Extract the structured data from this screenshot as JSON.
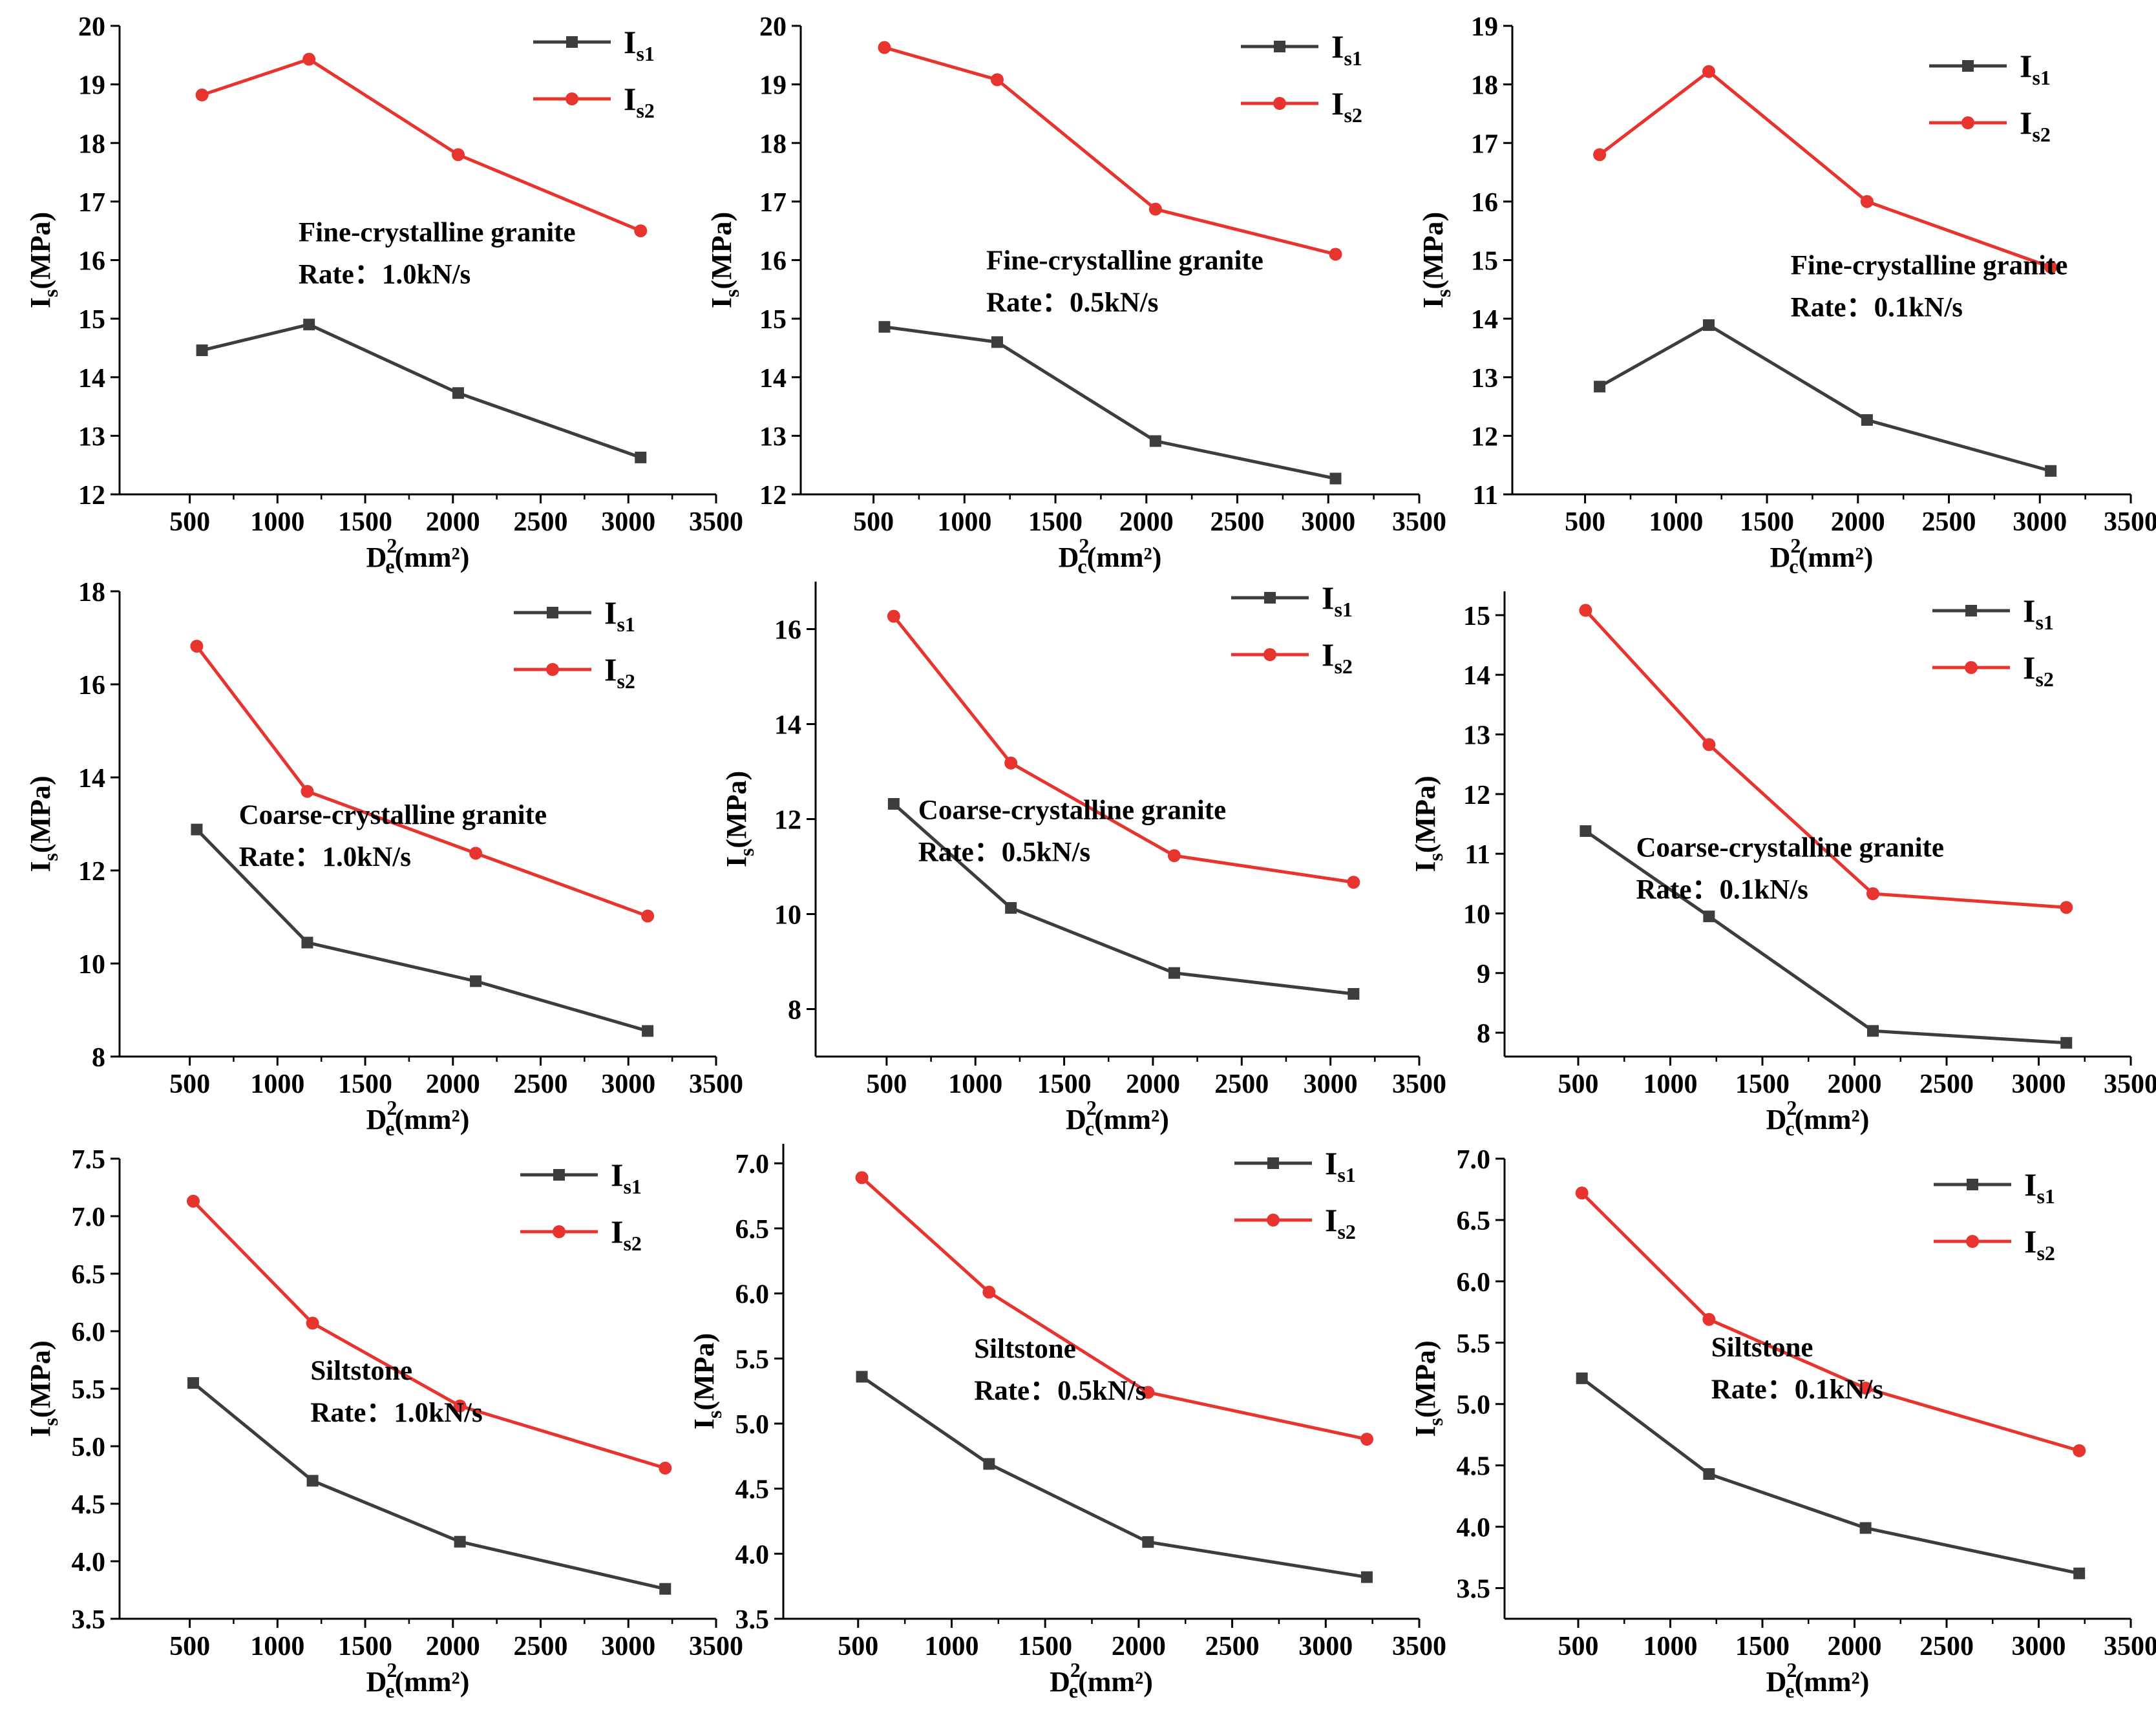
{
  "colors": {
    "s1": "#3d3d3d",
    "s2": "#e8342f",
    "axis": "#000000"
  },
  "axis_text": {
    "ylabel_main": "I",
    "ylabel_sub": "s",
    "ylabel_unit": "(MPa)",
    "xlabel_main": "D",
    "xlabel_sup": "2",
    "xlabel_unit": "(mm²)"
  },
  "legend_text": {
    "main": "I",
    "s1_sub": "s1",
    "s2_sub": "s2"
  },
  "chart_data": [
    {
      "type": "line",
      "title": "",
      "annotation": [
        "Fine-crystalline granite",
        "Rate：1.0kN/s"
      ],
      "xlabel_sub": "e",
      "xlim": [
        100,
        3500
      ],
      "xticks": [
        500,
        1000,
        1500,
        2000,
        2500,
        3000,
        3500
      ],
      "ylim": [
        12,
        20
      ],
      "yticks": [
        "12",
        "13",
        "14",
        "15",
        "16",
        "17",
        "18",
        "19",
        "20"
      ],
      "series": [
        {
          "name": "Is1",
          "x": [
            570,
            1180,
            2030,
            3070
          ],
          "values": [
            14.46,
            14.9,
            13.73,
            12.63
          ]
        },
        {
          "name": "Is2",
          "x": [
            570,
            1180,
            2030,
            3070
          ],
          "values": [
            18.82,
            19.43,
            17.8,
            16.5
          ]
        }
      ]
    },
    {
      "type": "line",
      "title": "",
      "annotation": [
        "Fine-crystalline granite",
        "Rate：0.5kN/s"
      ],
      "xlabel_sub": "c",
      "xlim": [
        100,
        3500
      ],
      "xticks": [
        500,
        1000,
        1500,
        2000,
        2500,
        3000,
        3500
      ],
      "ylim": [
        12,
        20
      ],
      "yticks": [
        "12",
        "13",
        "14",
        "15",
        "16",
        "17",
        "18",
        "19",
        "20"
      ],
      "series": [
        {
          "name": "Is1",
          "x": [
            560,
            1180,
            2050,
            3040
          ],
          "values": [
            14.86,
            14.6,
            12.91,
            12.27
          ]
        },
        {
          "name": "Is2",
          "x": [
            560,
            1180,
            2050,
            3040
          ],
          "values": [
            19.63,
            19.08,
            16.87,
            16.1
          ]
        }
      ]
    },
    {
      "type": "line",
      "title": "",
      "annotation": [
        "Fine-crystalline granite",
        "Rate：0.1kN/s"
      ],
      "xlabel_sub": "c",
      "xlim": [
        100,
        3500
      ],
      "xticks": [
        500,
        1000,
        1500,
        2000,
        2500,
        3000,
        3500
      ],
      "ylim": [
        11,
        19
      ],
      "yticks": [
        "11",
        "12",
        "13",
        "14",
        "15",
        "16",
        "17",
        "18",
        "19"
      ],
      "series": [
        {
          "name": "Is1",
          "x": [
            580,
            1180,
            2050,
            3060
          ],
          "values": [
            12.84,
            13.89,
            12.27,
            11.4
          ]
        },
        {
          "name": "Is2",
          "x": [
            580,
            1180,
            2050,
            3060
          ],
          "values": [
            16.8,
            18.22,
            16.0,
            14.88
          ]
        }
      ]
    },
    {
      "type": "line",
      "title": "",
      "annotation": [
        "Coarse-crystalline granite",
        "Rate：1.0kN/s"
      ],
      "xlabel_sub": "e",
      "xlim": [
        100,
        3500
      ],
      "xticks": [
        500,
        1000,
        1500,
        2000,
        2500,
        3000,
        3500
      ],
      "ylim": [
        8,
        18
      ],
      "yticks": [
        "8",
        "10",
        "12",
        "14",
        "16",
        "18"
      ],
      "series": [
        {
          "name": "Is1",
          "x": [
            540,
            1170,
            2130,
            3110
          ],
          "values": [
            12.88,
            10.45,
            9.62,
            8.55
          ]
        },
        {
          "name": "Is2",
          "x": [
            540,
            1170,
            2130,
            3110
          ],
          "values": [
            16.82,
            13.7,
            12.37,
            11.02
          ]
        }
      ]
    },
    {
      "type": "line",
      "title": "",
      "annotation": [
        "Coarse-crystalline granite",
        "Rate：0.5kN/s"
      ],
      "xlabel_sub": "c",
      "xlim": [
        100,
        3500
      ],
      "xticks": [
        500,
        1000,
        1500,
        2000,
        2500,
        3000,
        3500
      ],
      "ylim": [
        7,
        17
      ],
      "yticks": [
        "8",
        "10",
        "12",
        "14",
        "16"
      ],
      "series": [
        {
          "name": "Is1",
          "x": [
            540,
            1200,
            2120,
            3130
          ],
          "values": [
            12.32,
            10.13,
            8.76,
            8.32
          ]
        },
        {
          "name": "Is2",
          "x": [
            540,
            1200,
            2120,
            3130
          ],
          "values": [
            16.27,
            13.18,
            11.23,
            10.67
          ]
        }
      ]
    },
    {
      "type": "line",
      "title": "",
      "annotation": [
        "Coarse-crystalline granite",
        "Rate：0.1kN/s"
      ],
      "xlabel_sub": "c",
      "xlim": [
        100,
        3500
      ],
      "xticks": [
        500,
        1000,
        1500,
        2000,
        2500,
        3000,
        3500
      ],
      "ylim": [
        7.6,
        15.4
      ],
      "yticks": [
        "8",
        "9",
        "10",
        "11",
        "12",
        "13",
        "14",
        "15"
      ],
      "series": [
        {
          "name": "Is1",
          "x": [
            540,
            1210,
            2100,
            3150
          ],
          "values": [
            11.38,
            9.95,
            8.03,
            7.83
          ]
        },
        {
          "name": "Is2",
          "x": [
            540,
            1210,
            2100,
            3150
          ],
          "values": [
            15.08,
            12.83,
            10.33,
            10.1
          ]
        }
      ]
    },
    {
      "type": "line",
      "title": "",
      "annotation": [
        "Siltstone",
        "Rate：1.0kN/s"
      ],
      "xlabel_sub": "e",
      "xlim": [
        100,
        3500
      ],
      "xticks": [
        500,
        1000,
        1500,
        2000,
        2500,
        3000,
        3500
      ],
      "ylim": [
        3.5,
        7.5
      ],
      "yticks": [
        "3.5",
        "4.0",
        "4.5",
        "5.0",
        "5.5",
        "6.0",
        "6.5",
        "7.0",
        "7.5"
      ],
      "series": [
        {
          "name": "Is1",
          "x": [
            520,
            1200,
            2040,
            3210
          ],
          "values": [
            5.55,
            4.7,
            4.17,
            3.76
          ]
        },
        {
          "name": "Is2",
          "x": [
            520,
            1200,
            2040,
            3210
          ],
          "values": [
            7.13,
            6.07,
            5.35,
            4.81
          ]
        }
      ]
    },
    {
      "type": "line",
      "title": "",
      "annotation": [
        "Siltstone",
        "Rate：0.5kN/s"
      ],
      "xlabel_sub": "e",
      "xlim": [
        100,
        3500
      ],
      "xticks": [
        500,
        1000,
        1500,
        2000,
        2500,
        3000,
        3500
      ],
      "ylim": [
        3.5,
        7.15
      ],
      "yticks": [
        "3.5",
        "4.0",
        "4.5",
        "5.0",
        "5.5",
        "6.0",
        "6.5",
        "7.0"
      ],
      "series": [
        {
          "name": "Is1",
          "x": [
            520,
            1200,
            2050,
            3220
          ],
          "values": [
            5.36,
            4.69,
            4.09,
            3.82
          ]
        },
        {
          "name": "Is2",
          "x": [
            520,
            1200,
            2050,
            3220
          ],
          "values": [
            6.89,
            6.01,
            5.24,
            4.88
          ]
        }
      ]
    },
    {
      "type": "line",
      "title": "",
      "annotation": [
        "Siltstone",
        "Rate：0.1kN/s"
      ],
      "xlabel_sub": "e",
      "xlim": [
        100,
        3500
      ],
      "xticks": [
        500,
        1000,
        1500,
        2000,
        2500,
        3000,
        3500
      ],
      "ylim": [
        3.25,
        7.0
      ],
      "yticks": [
        "3.5",
        "4.0",
        "4.5",
        "5.0",
        "5.5",
        "6.0",
        "6.5",
        "7.0"
      ],
      "series": [
        {
          "name": "Is1",
          "x": [
            520,
            1210,
            2060,
            3220
          ],
          "values": [
            5.21,
            4.43,
            3.99,
            3.62
          ]
        },
        {
          "name": "Is2",
          "x": [
            520,
            1210,
            2060,
            3220
          ],
          "values": [
            6.72,
            5.69,
            5.13,
            4.62
          ]
        }
      ]
    }
  ]
}
